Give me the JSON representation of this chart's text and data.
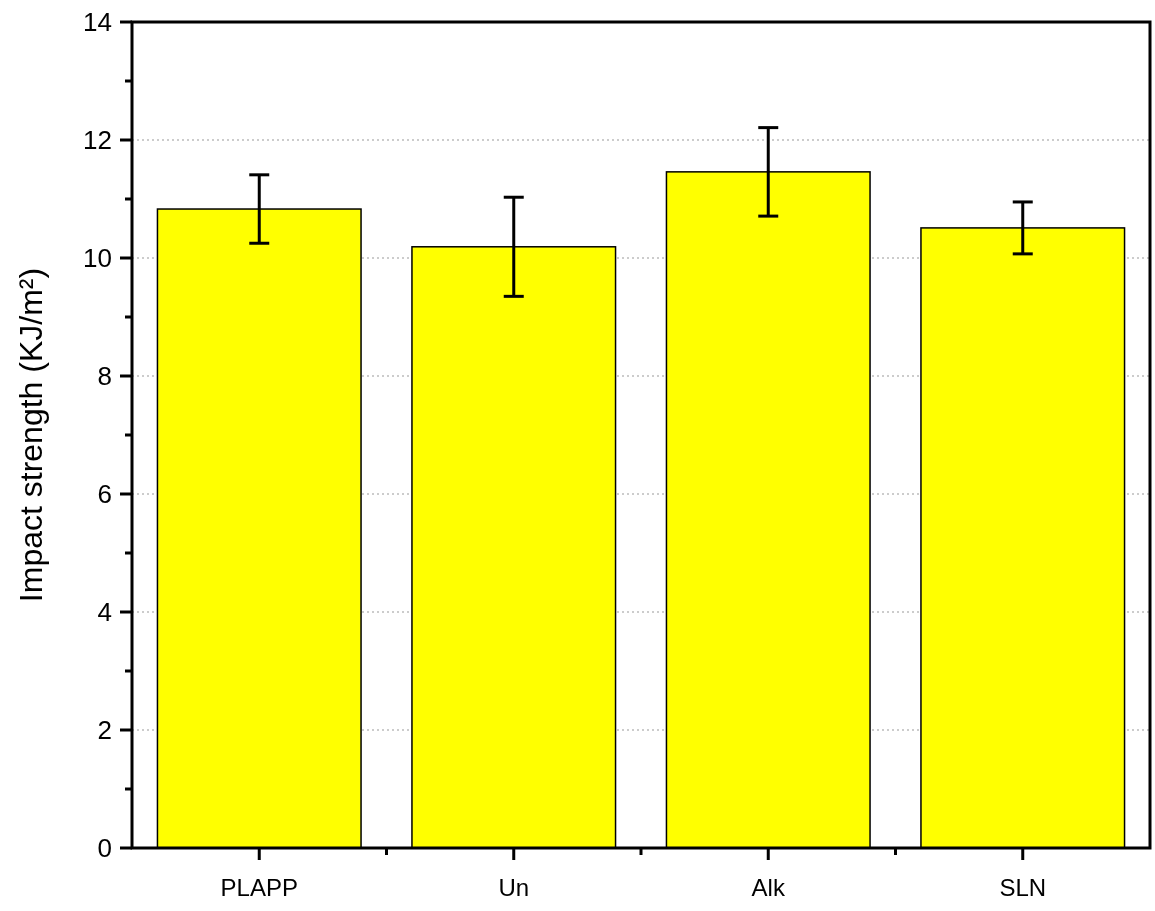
{
  "chart_data": {
    "type": "bar",
    "ylabel": "Impact strength (KJ/m²)",
    "categories": [
      "PLAPP",
      "Un",
      "Alk",
      "SLN"
    ],
    "series": [
      {
        "color": "#ffff00",
        "values": [
          10.83,
          10.19,
          11.46,
          10.51
        ],
        "errors": [
          0.58,
          0.84,
          0.75,
          0.44
        ]
      }
    ],
    "ylim": [
      0,
      14
    ],
    "yticks": [
      0,
      2,
      4,
      6,
      8,
      10,
      12,
      14
    ],
    "grid": "y"
  }
}
